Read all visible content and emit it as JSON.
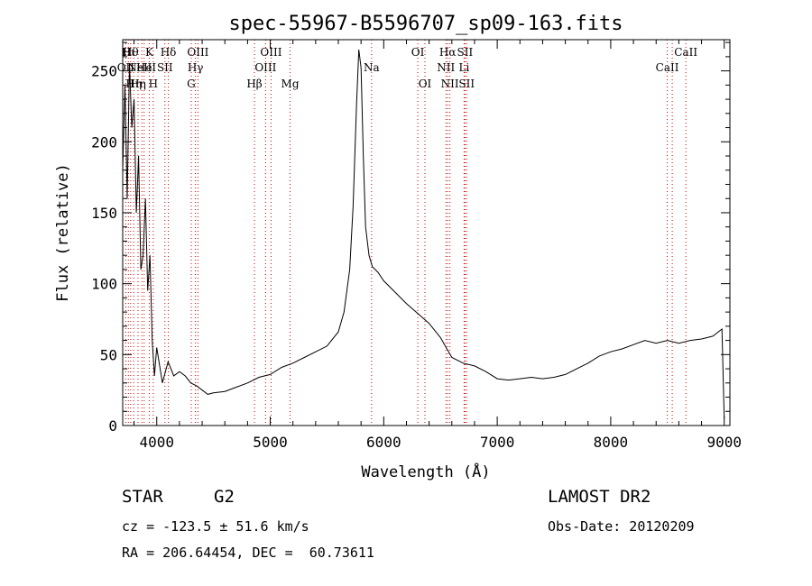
{
  "chart_data": {
    "type": "line",
    "title": "spec-55967-B5596707_sp09-163.fits",
    "xlabel": "Wavelength (Å)",
    "ylabel": "Flux (relative)",
    "xlim": [
      3700,
      9050
    ],
    "ylim": [
      0,
      272
    ],
    "x_ticks": [
      4000,
      5000,
      6000,
      7000,
      8000,
      9000
    ],
    "y_ticks": [
      0,
      50,
      100,
      150,
      200,
      250
    ],
    "grid": false,
    "line_color": "#000000",
    "marker_color": "#cc0000",
    "series": [
      {
        "x": [
          3700,
          3720,
          3740,
          3760,
          3780,
          3800,
          3820,
          3840,
          3860,
          3880,
          3900,
          3920,
          3940,
          3960,
          3980,
          4000,
          4050,
          4100,
          4150,
          4200,
          4250,
          4300,
          4350,
          4400,
          4450,
          4500,
          4600,
          4700,
          4800,
          4900,
          5000,
          5100,
          5200,
          5300,
          5400,
          5500,
          5600,
          5650,
          5700,
          5730,
          5760,
          5780,
          5800,
          5820,
          5840,
          5870,
          5900,
          5950,
          6000,
          6100,
          6200,
          6300,
          6400,
          6500,
          6550,
          6600,
          6700,
          6800,
          6900,
          7000,
          7100,
          7200,
          7300,
          7400,
          7500,
          7600,
          7700,
          7800,
          7900,
          8000,
          8100,
          8200,
          8300,
          8400,
          8500,
          8600,
          8700,
          8800,
          8900,
          8980,
          9000
        ],
        "y": [
          180,
          240,
          160,
          255,
          210,
          230,
          150,
          190,
          110,
          120,
          160,
          95,
          120,
          60,
          35,
          55,
          30,
          45,
          35,
          38,
          35,
          30,
          28,
          25,
          22,
          23,
          24,
          27,
          30,
          34,
          36,
          41,
          44,
          48,
          52,
          56,
          66,
          80,
          110,
          155,
          225,
          265,
          252,
          190,
          140,
          120,
          112,
          108,
          102,
          94,
          86,
          79,
          72,
          62,
          55,
          48,
          44,
          42,
          38,
          33,
          32,
          33,
          34,
          33,
          34,
          36,
          40,
          44,
          49,
          52,
          54,
          57,
          60,
          58,
          60,
          58,
          60,
          61,
          63,
          68,
          5
        ]
      }
    ],
    "lines": [
      {
        "wavelength": 3727,
        "label": "OII",
        "row": 2
      },
      {
        "wavelength": 3750,
        "label": "Hι",
        "row": 1
      },
      {
        "wavelength": 3770,
        "label": "Hθ",
        "row": 1
      },
      {
        "wavelength": 3797,
        "label": "Hη",
        "row": 3
      },
      {
        "wavelength": 3835,
        "label": "Hη",
        "row": 3
      },
      {
        "wavelength": 3869,
        "label": "NeIII",
        "row": 2
      },
      {
        "wavelength": 3889,
        "label": "He",
        "row": 2
      },
      {
        "wavelength": 3934,
        "label": "K",
        "row": 1
      },
      {
        "wavelength": 3969,
        "label": "H",
        "row": 3
      },
      {
        "wavelength": 4072,
        "label": "SII",
        "row": 2
      },
      {
        "wavelength": 4102,
        "label": "Hδ",
        "row": 1
      },
      {
        "wavelength": 4304,
        "label": "G",
        "row": 3
      },
      {
        "wavelength": 4341,
        "label": "Hγ",
        "row": 2
      },
      {
        "wavelength": 4363,
        "label": "OIII",
        "row": 1
      },
      {
        "wavelength": 4861,
        "label": "Hβ",
        "row": 3
      },
      {
        "wavelength": 4959,
        "label": "OIII",
        "row": 2
      },
      {
        "wavelength": 5007,
        "label": "OIII",
        "row": 1
      },
      {
        "wavelength": 5175,
        "label": "Mg",
        "row": 3
      },
      {
        "wavelength": 5893,
        "label": "Na",
        "row": 2
      },
      {
        "wavelength": 6300,
        "label": "OI",
        "row": 1
      },
      {
        "wavelength": 6363,
        "label": "OI",
        "row": 3
      },
      {
        "wavelength": 6548,
        "label": "NII",
        "row": 2
      },
      {
        "wavelength": 6563,
        "label": "Hα",
        "row": 1
      },
      {
        "wavelength": 6583,
        "label": "NII",
        "row": 3
      },
      {
        "wavelength": 6708,
        "label": "Li",
        "row": 2
      },
      {
        "wavelength": 6716,
        "label": "SII",
        "row": 1
      },
      {
        "wavelength": 6731,
        "label": "SII",
        "row": 3
      },
      {
        "wavelength": 8498,
        "label": "CaII",
        "row": 2
      },
      {
        "wavelength": 8542,
        "label": "",
        "row": 0
      },
      {
        "wavelength": 8662,
        "label": "CaII",
        "row": 1
      }
    ]
  },
  "info": {
    "class": "STAR",
    "subclass": "G2",
    "survey": "LAMOST DR2",
    "cz": "cz = -123.5 ± 51.6 km/s",
    "obs_date": "Obs-Date: 20120209",
    "radec": "RA = 206.64454, DEC =  60.73611"
  }
}
